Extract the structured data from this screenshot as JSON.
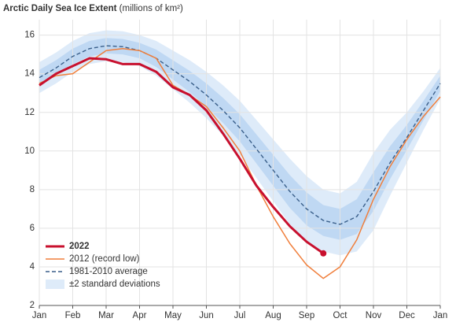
{
  "chart_data": {
    "type": "line",
    "title": "Arctic Daily Sea Ice Extent",
    "units": "(millions of km²)",
    "x": [
      0,
      0.5,
      1,
      1.5,
      2,
      2.5,
      3,
      3.5,
      4,
      4.5,
      5,
      5.5,
      6,
      6.5,
      7,
      7.5,
      8,
      8.5,
      9,
      9.5,
      10,
      10.5,
      11,
      11.5,
      12
    ],
    "xlim": [
      0,
      12
    ],
    "xticks": [
      {
        "value": 0,
        "label": "Jan"
      },
      {
        "value": 1,
        "label": "Feb"
      },
      {
        "value": 2,
        "label": "Mar"
      },
      {
        "value": 3,
        "label": "Apr"
      },
      {
        "value": 4,
        "label": "May"
      },
      {
        "value": 5,
        "label": "Jun"
      },
      {
        "value": 6,
        "label": "Jul"
      },
      {
        "value": 7,
        "label": "Aug"
      },
      {
        "value": 8,
        "label": "Sep"
      },
      {
        "value": 9,
        "label": "Oct"
      },
      {
        "value": 10,
        "label": "Nov"
      },
      {
        "value": 11,
        "label": "Dec"
      },
      {
        "value": 12,
        "label": "Jan"
      }
    ],
    "ylim": [
      2,
      16.8
    ],
    "yticks": [
      2,
      4,
      6,
      8,
      10,
      12,
      14,
      16
    ],
    "grid": true,
    "bands": [
      {
        "name": "±2 standard deviations",
        "color": "#deebf9",
        "lower": [
          13.0,
          13.5,
          14.1,
          14.5,
          14.65,
          14.6,
          14.4,
          13.9,
          13.2,
          12.5,
          11.7,
          10.8,
          9.8,
          8.6,
          7.4,
          6.2,
          5.3,
          4.8,
          4.6,
          4.8,
          5.9,
          7.7,
          9.4,
          11.1,
          12.7
        ],
        "upper": [
          14.6,
          15.1,
          15.7,
          16.1,
          16.25,
          16.2,
          16.0,
          15.7,
          15.2,
          14.7,
          14.1,
          13.4,
          12.6,
          11.6,
          10.6,
          9.6,
          8.7,
          8.0,
          7.8,
          8.4,
          9.9,
          11.1,
          12.0,
          13.1,
          14.3
        ]
      },
      {
        "color": "#bfd8f3",
        "lower": [
          13.4,
          13.9,
          14.5,
          14.9,
          15.05,
          15.0,
          14.8,
          14.35,
          13.7,
          13.05,
          12.3,
          11.45,
          10.5,
          9.35,
          8.2,
          7.05,
          6.15,
          5.6,
          5.4,
          5.7,
          6.9,
          8.55,
          10.05,
          11.6,
          13.1
        ],
        "upper": [
          14.2,
          14.7,
          15.3,
          15.7,
          15.85,
          15.8,
          15.6,
          15.25,
          14.7,
          14.15,
          13.5,
          12.75,
          11.9,
          10.85,
          9.8,
          8.75,
          7.85,
          7.2,
          7.0,
          7.5,
          8.9,
          10.25,
          11.35,
          12.6,
          13.9
        ]
      }
    ],
    "series": [
      {
        "name": "2022",
        "color": "#c8102e",
        "width": 3,
        "marker": true,
        "values": [
          13.4,
          14.0,
          14.4,
          14.8,
          14.75,
          14.5,
          14.5,
          14.1,
          13.3,
          12.9,
          12.1,
          10.9,
          9.6,
          8.2,
          7.1,
          6.1,
          5.3,
          4.7,
          null,
          null,
          null,
          null,
          null,
          null,
          null
        ]
      },
      {
        "name": "2012 (record low)",
        "color": "#f07f3c",
        "width": 1.5,
        "values": [
          13.5,
          13.9,
          14.0,
          14.6,
          15.2,
          15.3,
          15.2,
          14.8,
          13.4,
          12.9,
          12.3,
          11.2,
          10.0,
          8.2,
          6.6,
          5.2,
          4.1,
          3.4,
          4.0,
          5.4,
          7.5,
          9.2,
          10.6,
          11.8,
          12.8
        ]
      },
      {
        "name": "1981-2010 average",
        "color": "#3a5f8a",
        "width": 1.4,
        "dashed": true,
        "values": [
          13.8,
          14.3,
          14.9,
          15.3,
          15.45,
          15.4,
          15.2,
          14.8,
          14.2,
          13.6,
          12.9,
          12.1,
          11.2,
          10.1,
          9.0,
          7.9,
          7.0,
          6.4,
          6.2,
          6.6,
          7.9,
          9.4,
          10.7,
          12.1,
          13.5
        ]
      }
    ]
  }
}
